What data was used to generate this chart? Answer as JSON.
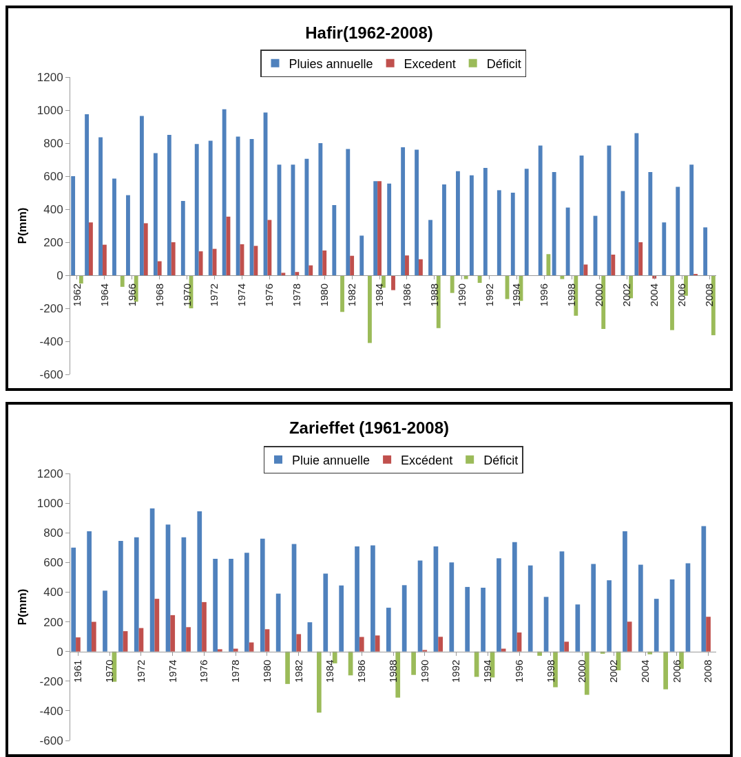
{
  "chart_data": [
    {
      "type": "bar",
      "title": "Hafir(1962-2008)",
      "ylabel": "P(mm)",
      "legend": "top",
      "ylim": [
        -600,
        1200
      ],
      "yticks": [
        -600,
        -400,
        -200,
        0,
        200,
        400,
        600,
        800,
        1000,
        1200
      ],
      "categories": [
        "1962",
        null,
        "1964",
        null,
        "1966",
        null,
        "1968",
        null,
        "1970",
        null,
        "1972",
        null,
        "1974",
        null,
        "1976",
        null,
        "1978",
        null,
        "1980",
        null,
        "1982",
        null,
        "1984",
        null,
        "1986",
        null,
        "1988",
        null,
        "1990",
        null,
        "1992",
        null,
        "1994",
        null,
        "1996",
        null,
        "1998",
        null,
        "2000",
        null,
        "2002",
        null,
        "2004",
        null,
        "2006",
        null,
        "2008"
      ],
      "series": [
        {
          "name": "Pluies annuelle",
          "color": "#4f81bd",
          "values": [
            600,
            975,
            835,
            585,
            485,
            965,
            740,
            850,
            450,
            795,
            815,
            1005,
            840,
            825,
            985,
            670,
            670,
            705,
            800,
            425,
            765,
            240,
            570,
            555,
            775,
            760,
            335,
            550,
            630,
            605,
            650,
            515,
            500,
            645,
            785,
            625,
            410,
            725,
            360,
            785,
            510,
            860,
            625,
            320,
            535,
            670,
            290
          ]
        },
        {
          "name": "Excedent",
          "color": "#c0504d",
          "values": [
            null,
            320,
            185,
            null,
            null,
            315,
            85,
            200,
            null,
            145,
            160,
            355,
            188,
            178,
            335,
            15,
            20,
            60,
            150,
            null,
            118,
            null,
            570,
            -90,
            120,
            97,
            null,
            null,
            null,
            null,
            null,
            null,
            null,
            null,
            null,
            null,
            null,
            65,
            null,
            125,
            null,
            200,
            -20,
            null,
            null,
            8,
            null
          ]
        },
        {
          "name": "Déficit",
          "color": "#9bbb59",
          "values": [
            -50,
            null,
            null,
            -70,
            -160,
            null,
            null,
            null,
            -200,
            null,
            null,
            null,
            null,
            null,
            null,
            null,
            null,
            null,
            null,
            -222,
            null,
            -410,
            -75,
            null,
            null,
            null,
            -320,
            -107,
            -23,
            -46,
            null,
            -144,
            -155,
            null,
            128,
            -23,
            -245,
            null,
            -325,
            null,
            -139,
            null,
            null,
            -332,
            -124,
            null,
            -363
          ]
        }
      ]
    },
    {
      "type": "bar",
      "title": "Zarieffet (1961-2008)",
      "ylabel": "P(mm)",
      "legend": "top",
      "ylim": [
        -600,
        1200
      ],
      "yticks": [
        -600,
        -400,
        -200,
        0,
        200,
        400,
        600,
        800,
        1000,
        1200
      ],
      "categories": [
        "1961",
        null,
        "1970",
        null,
        "1972",
        null,
        "1974",
        null,
        "1976",
        null,
        "1978",
        null,
        "1980",
        null,
        "1982",
        null,
        "1984",
        null,
        "1986",
        null,
        "1988",
        null,
        "1990",
        null,
        "1992",
        null,
        "1994",
        null,
        "1996",
        null,
        "1998",
        null,
        "2000",
        null,
        "2002",
        null,
        "2004",
        null,
        "2006",
        null,
        "2008"
      ],
      "series": [
        {
          "name": "Pluie annuelle",
          "color": "#4f81bd",
          "values": [
            700,
            810,
            410,
            745,
            770,
            965,
            855,
            770,
            945,
            625,
            625,
            665,
            760,
            390,
            725,
            197,
            525,
            445,
            708,
            715,
            295,
            447,
            613,
            708,
            600,
            435,
            430,
            628,
            737,
            580,
            368,
            675,
            317,
            590,
            480,
            810,
            585,
            355,
            486,
            595,
            845
          ]
        },
        {
          "name": "Excédent",
          "color": "#c0504d",
          "values": [
            95,
            200,
            null,
            137,
            158,
            355,
            245,
            164,
            333,
            15,
            19,
            61,
            150,
            null,
            117,
            null,
            null,
            null,
            98,
            108,
            null,
            null,
            10,
            99,
            null,
            null,
            null,
            19,
            128,
            null,
            null,
            66,
            null,
            null,
            null,
            201,
            null,
            null,
            null,
            null,
            234
          ]
        },
        {
          "name": "Déficit",
          "color": "#9bbb59",
          "values": [
            null,
            null,
            -204,
            null,
            null,
            null,
            null,
            null,
            null,
            null,
            null,
            null,
            null,
            -219,
            null,
            -412,
            -80,
            -161,
            null,
            null,
            -311,
            -158,
            null,
            null,
            null,
            -171,
            -175,
            null,
            null,
            -29,
            -241,
            null,
            -292,
            -15,
            -127,
            null,
            -19,
            -255,
            -117,
            null,
            null
          ]
        }
      ]
    }
  ]
}
